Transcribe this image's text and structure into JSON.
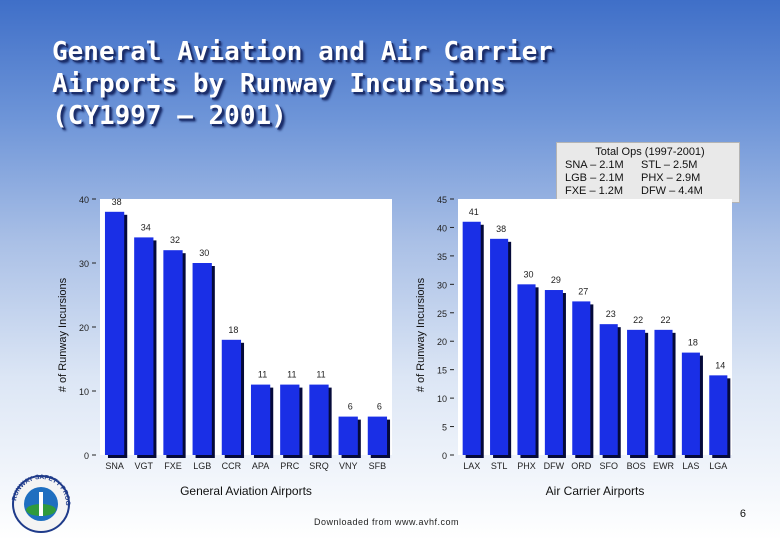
{
  "title_lines": [
    "General Aviation and Air Carrier",
    "Airports by Runway Incursions",
    "(CY1997 – 2001)"
  ],
  "ops_box": {
    "title": "Total Ops (1997-2001)",
    "rows": [
      [
        "SNA – 2.1M",
        "STL – 2.5M"
      ],
      [
        "LGB – 2.1M",
        "PHX – 2.9M"
      ],
      [
        "FXE – 1.2M",
        "DFW – 4.4M"
      ]
    ]
  },
  "colors": {
    "bar": "#1a2fe6",
    "bar_shadow": "#050a3a",
    "plot_bg": "#ffffff"
  },
  "chart_data": [
    {
      "type": "bar",
      "title": "",
      "xlabel": "General Aviation Airports",
      "ylabel": "# of Runway Incursions",
      "categories": [
        "SNA",
        "VGT",
        "FXE",
        "LGB",
        "CCR",
        "APA",
        "PRC",
        "SRQ",
        "VNY",
        "SFB"
      ],
      "values": [
        38,
        34,
        32,
        30,
        18,
        11,
        11,
        11,
        6,
        6
      ],
      "ylim": [
        0,
        40
      ],
      "yticks": [
        0,
        10,
        20,
        30,
        40
      ],
      "grid": false
    },
    {
      "type": "bar",
      "title": "",
      "xlabel": "Air Carrier Airports",
      "ylabel": "# of Runway Incursions",
      "categories": [
        "LAX",
        "STL",
        "PHX",
        "DFW",
        "ORD",
        "SFO",
        "BOS",
        "EWR",
        "LAS",
        "LGA"
      ],
      "values": [
        41,
        38,
        30,
        29,
        27,
        23,
        22,
        22,
        18,
        14
      ],
      "value_labels": [
        "41",
        "38",
        "30",
        "29",
        "27",
        "23",
        "22",
        "22",
        "18",
        "14"
      ],
      "ylim": [
        0,
        45
      ],
      "yticks": [
        0,
        5,
        10,
        15,
        20,
        25,
        30,
        35,
        40,
        45
      ],
      "grid": false
    }
  ],
  "footer": "Downloaded from www.avhf.com",
  "page_number": "6",
  "seal_text": "RUNWAY SAFETY PROGRAM"
}
